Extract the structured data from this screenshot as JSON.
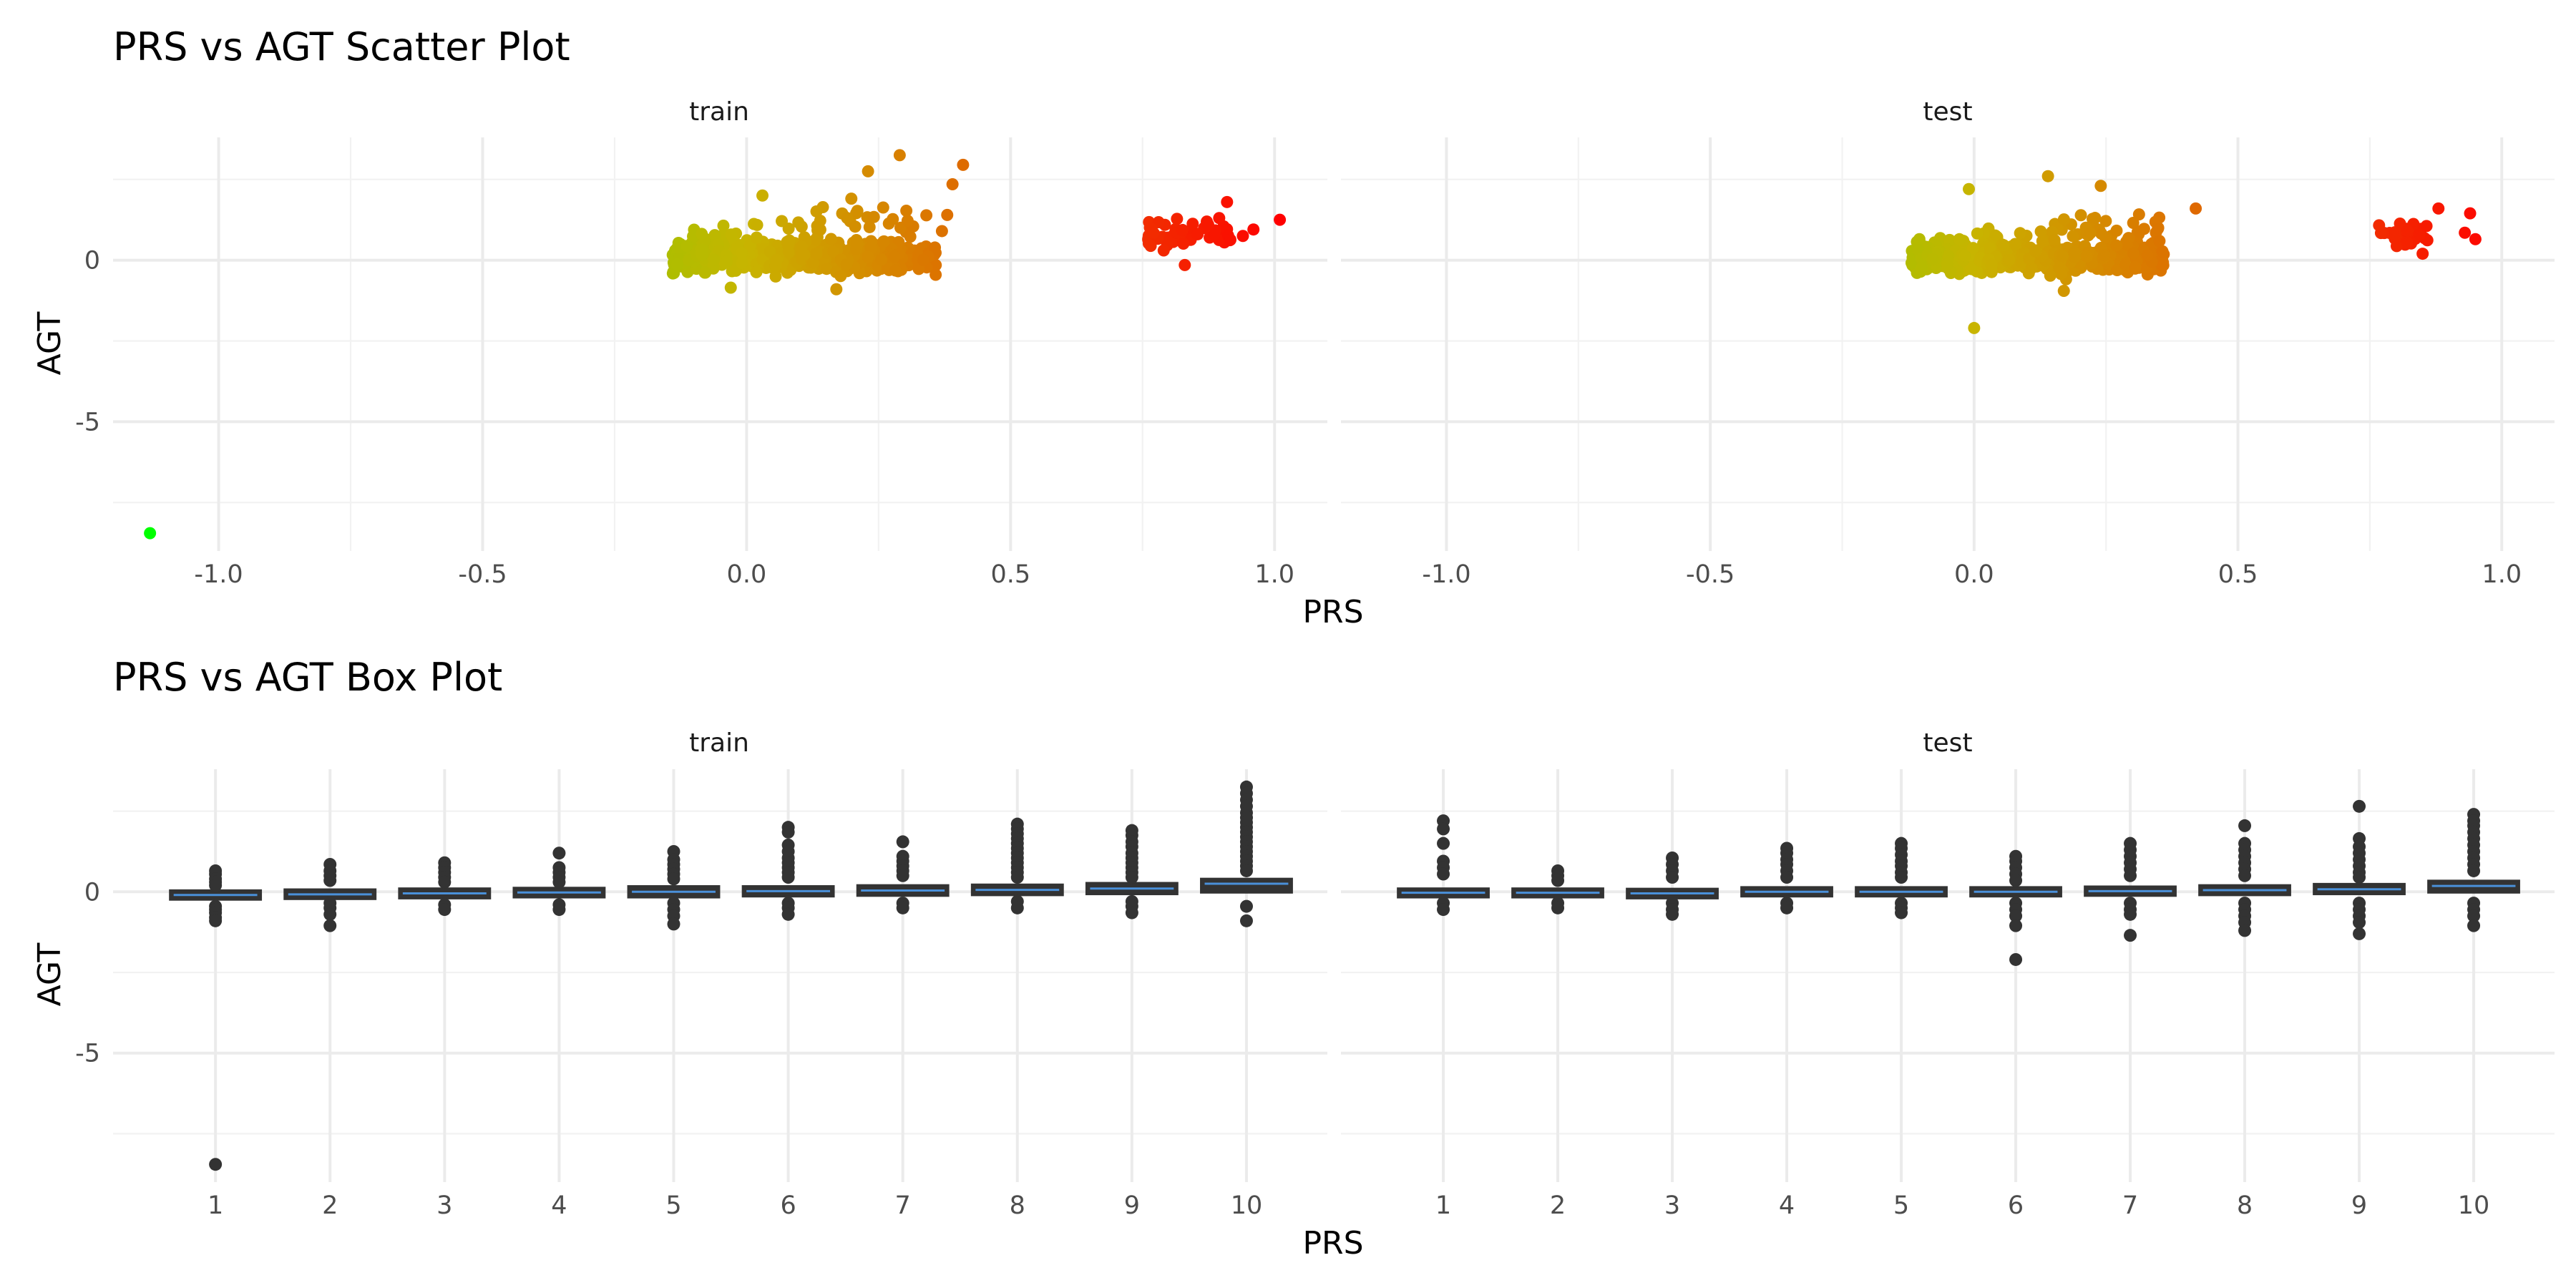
{
  "chart_data": [
    {
      "type": "scatter",
      "title": "PRS vs AGT Scatter Plot",
      "xlabel": "PRS",
      "ylabel": "AGT",
      "xlim": [
        -1.2,
        1.1
      ],
      "ylim": [
        -9.0,
        3.8
      ],
      "x_ticks": [
        -1.0,
        -0.5,
        0.0,
        0.5,
        1.0
      ],
      "x_tick_labels": [
        "-1.0",
        "-0.5",
        "0.0",
        "0.5",
        "1.0"
      ],
      "y_ticks": [
        -5,
        0
      ],
      "y_tick_labels": [
        "-5",
        "0"
      ],
      "grid": true,
      "legend": "none",
      "color_scale": {
        "low": "#00ff00",
        "mid": "#c8b400",
        "high": "#ff0000",
        "mapped_to": "PRS"
      },
      "facets": [
        {
          "label": "train",
          "clusters": [
            {
              "x_range": [
                -0.14,
                0.36
              ],
              "y_center": 0.05,
              "y_spread": 0.35,
              "upper_extra": 1.6,
              "count": 650
            },
            {
              "x_range": [
                0.76,
                0.92
              ],
              "y_center": 0.8,
              "y_spread": 0.35,
              "upper_extra": 0.4,
              "count": 55
            }
          ],
          "points": [
            {
              "x": -1.13,
              "y": -8.45
            },
            {
              "x": 0.29,
              "y": 3.25
            },
            {
              "x": 0.41,
              "y": 2.95
            },
            {
              "x": 0.39,
              "y": 2.35
            },
            {
              "x": 0.23,
              "y": 2.75
            },
            {
              "x": 0.38,
              "y": 1.4
            },
            {
              "x": 0.37,
              "y": 0.9
            },
            {
              "x": 0.17,
              "y": -0.9
            },
            {
              "x": -0.03,
              "y": -0.85
            },
            {
              "x": 0.03,
              "y": 2.0
            },
            {
              "x": 0.91,
              "y": 1.8
            },
            {
              "x": 1.01,
              "y": 1.25
            },
            {
              "x": 0.96,
              "y": 0.95
            },
            {
              "x": 0.94,
              "y": 0.75
            },
            {
              "x": 0.83,
              "y": -0.15
            },
            {
              "x": 0.79,
              "y": 0.3
            }
          ]
        },
        {
          "label": "test",
          "clusters": [
            {
              "x_range": [
                -0.12,
                0.36
              ],
              "y_center": 0.05,
              "y_spread": 0.35,
              "upper_extra": 1.3,
              "count": 600
            },
            {
              "x_range": [
                0.76,
                0.86
              ],
              "y_center": 0.8,
              "y_spread": 0.3,
              "upper_extra": 0.2,
              "count": 35
            }
          ],
          "points": [
            {
              "x": 0.0,
              "y": -2.1
            },
            {
              "x": 0.14,
              "y": 2.6
            },
            {
              "x": 0.42,
              "y": 1.6
            },
            {
              "x": -0.01,
              "y": 2.2
            },
            {
              "x": 0.24,
              "y": 2.3
            },
            {
              "x": 0.17,
              "y": -0.95
            },
            {
              "x": 0.88,
              "y": 1.6
            },
            {
              "x": 0.94,
              "y": 1.45
            },
            {
              "x": 0.95,
              "y": 0.65
            },
            {
              "x": 0.85,
              "y": 0.2
            },
            {
              "x": 0.93,
              "y": 0.85
            }
          ]
        }
      ]
    },
    {
      "type": "box",
      "title": "PRS vs AGT Box Plot",
      "xlabel": "PRS",
      "ylabel": "AGT",
      "categories": [
        "1",
        "2",
        "3",
        "4",
        "5",
        "6",
        "7",
        "8",
        "9",
        "10"
      ],
      "ylim": [
        -9.0,
        3.8
      ],
      "y_ticks": [
        -5,
        0
      ],
      "y_tick_labels": [
        "-5",
        "0"
      ],
      "grid": true,
      "box_color": "#333333",
      "median_color": "#4a90d9",
      "facets": [
        {
          "label": "train",
          "boxes": [
            {
              "q1": -0.22,
              "q3": 0.02,
              "median": -0.1,
              "outliers": [
                0.65,
                0.55,
                0.4,
                0.3,
                0.2,
                -0.45,
                -0.55,
                -0.65,
                -0.8,
                -0.9,
                -8.45
              ]
            },
            {
              "q1": -0.2,
              "q3": 0.05,
              "median": -0.08,
              "outliers": [
                0.85,
                0.65,
                0.5,
                0.35,
                -0.35,
                -0.5,
                -0.7,
                -1.05
              ]
            },
            {
              "q1": -0.18,
              "q3": 0.08,
              "median": -0.05,
              "outliers": [
                0.9,
                0.75,
                0.6,
                0.45,
                0.3,
                -0.4,
                -0.55
              ]
            },
            {
              "q1": -0.15,
              "q3": 0.1,
              "median": -0.02,
              "outliers": [
                1.2,
                0.75,
                0.6,
                0.45,
                0.3,
                -0.4,
                -0.55
              ]
            },
            {
              "q1": -0.15,
              "q3": 0.15,
              "median": 0.0,
              "outliers": [
                1.25,
                1.0,
                0.85,
                0.7,
                0.55,
                0.4,
                -0.35,
                -0.55,
                -0.75,
                -1.0
              ]
            },
            {
              "q1": -0.12,
              "q3": 0.15,
              "median": 0.02,
              "outliers": [
                2.0,
                1.85,
                1.45,
                1.25,
                1.05,
                0.9,
                0.75,
                0.6,
                0.45,
                -0.35,
                -0.5,
                -0.7
              ]
            },
            {
              "q1": -0.1,
              "q3": 0.18,
              "median": 0.04,
              "outliers": [
                1.55,
                1.1,
                0.95,
                0.8,
                0.65,
                0.5,
                -0.35,
                -0.5
              ]
            },
            {
              "q1": -0.08,
              "q3": 0.2,
              "median": 0.06,
              "outliers": [
                2.1,
                1.95,
                1.8,
                1.65,
                1.5,
                1.35,
                1.2,
                1.05,
                0.9,
                0.75,
                0.6,
                0.45,
                -0.3,
                -0.5
              ]
            },
            {
              "q1": -0.05,
              "q3": 0.25,
              "median": 0.1,
              "outliers": [
                1.9,
                1.75,
                1.55,
                1.4,
                1.2,
                1.05,
                0.9,
                0.75,
                0.6,
                0.45,
                -0.3,
                -0.45,
                -0.65
              ]
            },
            {
              "q1": 0.0,
              "q3": 0.38,
              "median": 0.25,
              "outliers": [
                3.25,
                3.05,
                2.85,
                2.65,
                2.45,
                2.3,
                2.15,
                2.0,
                1.85,
                1.7,
                1.55,
                1.4,
                1.25,
                1.1,
                0.95,
                0.8,
                0.65,
                -0.45,
                -0.9
              ]
            }
          ]
        },
        {
          "label": "test",
          "boxes": [
            {
              "q1": -0.15,
              "q3": 0.08,
              "median": -0.03,
              "outliers": [
                2.2,
                1.95,
                1.5,
                0.95,
                0.75,
                0.55,
                -0.35,
                -0.55
              ]
            },
            {
              "q1": -0.15,
              "q3": 0.08,
              "median": -0.03,
              "outliers": [
                0.65,
                0.5,
                0.35,
                -0.35,
                -0.5
              ]
            },
            {
              "q1": -0.18,
              "q3": 0.07,
              "median": -0.05,
              "outliers": [
                1.05,
                0.85,
                0.65,
                0.45,
                -0.35,
                -0.55,
                -0.7
              ]
            },
            {
              "q1": -0.12,
              "q3": 0.12,
              "median": 0.0,
              "outliers": [
                1.35,
                1.2,
                1.0,
                0.85,
                0.65,
                0.45,
                -0.35,
                -0.5
              ]
            },
            {
              "q1": -0.12,
              "q3": 0.12,
              "median": 0.0,
              "outliers": [
                1.5,
                1.35,
                1.15,
                0.95,
                0.8,
                0.6,
                0.45,
                -0.35,
                -0.5,
                -0.65
              ]
            },
            {
              "q1": -0.12,
              "q3": 0.12,
              "median": 0.0,
              "outliers": [
                1.1,
                0.95,
                0.75,
                0.55,
                0.35,
                -0.35,
                -0.55,
                -0.75,
                -1.05,
                -2.1
              ]
            },
            {
              "q1": -0.1,
              "q3": 0.14,
              "median": 0.02,
              "outliers": [
                1.5,
                1.3,
                1.1,
                0.9,
                0.7,
                0.5,
                -0.35,
                -0.55,
                -0.7,
                -1.35
              ]
            },
            {
              "q1": -0.08,
              "q3": 0.18,
              "median": 0.05,
              "outliers": [
                2.05,
                1.5,
                1.3,
                1.1,
                0.9,
                0.7,
                0.5,
                -0.35,
                -0.55,
                -0.75,
                -0.95,
                -1.2
              ]
            },
            {
              "q1": -0.05,
              "q3": 0.22,
              "median": 0.08,
              "outliers": [
                2.65,
                1.65,
                1.4,
                1.2,
                1.0,
                0.8,
                0.6,
                0.45,
                -0.35,
                -0.55,
                -0.75,
                -0.95,
                -1.3
              ]
            },
            {
              "q1": 0.0,
              "q3": 0.32,
              "median": 0.18,
              "outliers": [
                2.4,
                2.2,
                2.05,
                1.85,
                1.65,
                1.45,
                1.25,
                1.05,
                0.85,
                0.65,
                -0.35,
                -0.55,
                -0.75,
                -1.05
              ]
            }
          ]
        }
      ]
    }
  ]
}
